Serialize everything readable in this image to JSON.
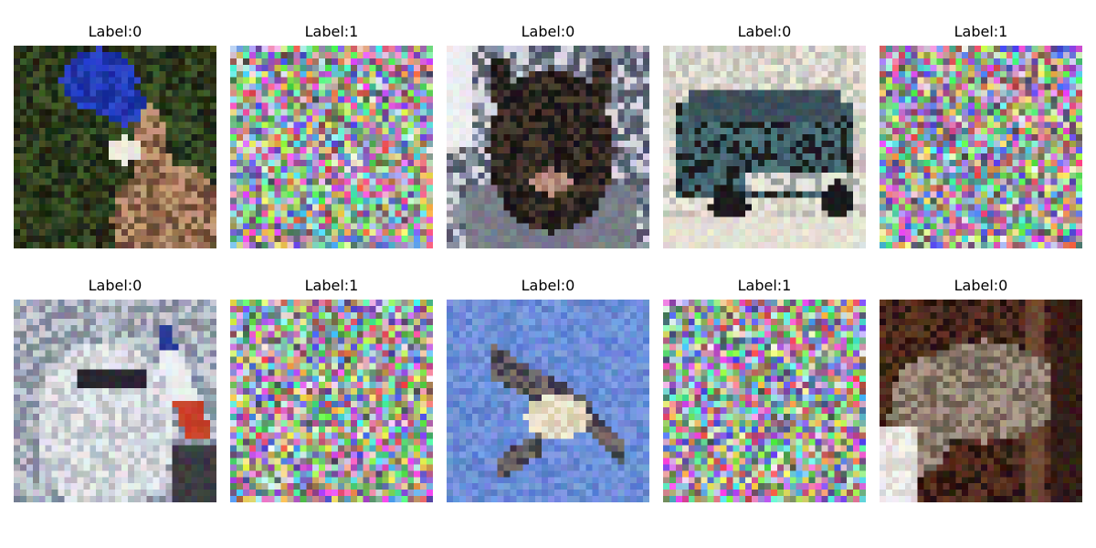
{
  "figure": {
    "panels": [
      {
        "label": "Label:0",
        "kind": "clean",
        "subject": "deer in forest",
        "palette": {
          "bg": [
            "#2c3a1c",
            "#405428",
            "#1c2414"
          ],
          "fg": [
            "#9a7052",
            "#c49a78",
            "#6a4a34"
          ],
          "accent": [
            "#1a2ea0",
            "#2a46c8"
          ]
        }
      },
      {
        "label": "Label:1",
        "kind": "noise"
      },
      {
        "label": "Label:0",
        "kind": "clean",
        "subject": "cat face",
        "palette": {
          "bg": [
            "#d8d8e0",
            "#8890a0",
            "#505868"
          ],
          "fg": [
            "#2a2420",
            "#4a3a30",
            "#1a1614"
          ],
          "accent": [
            "#a87c6c",
            "#c29888"
          ]
        }
      },
      {
        "label": "Label:0",
        "kind": "clean",
        "subject": "vintage truck",
        "palette": {
          "bg": [
            "#d4d2c8",
            "#c0beb4",
            "#eae6dc"
          ],
          "fg": [
            "#3c5c64",
            "#4c747c",
            "#1a1a1c"
          ],
          "accent": [
            "#e8e6dc",
            "#9aa0a0"
          ]
        }
      },
      {
        "label": "Label:1",
        "kind": "noise"
      },
      {
        "label": "Label:0",
        "kind": "clean",
        "subject": "airplane nose",
        "palette": {
          "bg": [
            "#a0a8b8",
            "#808898",
            "#c8ccd4"
          ],
          "fg": [
            "#e8eaee",
            "#d4d6dc",
            "#b8bcc4"
          ],
          "accent": [
            "#2a3a9a",
            "#c8402a"
          ]
        }
      },
      {
        "label": "Label:1",
        "kind": "noise"
      },
      {
        "label": "Label:0",
        "kind": "clean",
        "subject": "bird in sky",
        "palette": {
          "bg": [
            "#6a8ed8",
            "#7a9ae0",
            "#5c80cc"
          ],
          "fg": [
            "#5c5660",
            "#7a6e68",
            "#3a3844"
          ],
          "accent": [
            "#f0ead4",
            "#d8ccb0"
          ]
        }
      },
      {
        "label": "Label:1",
        "kind": "noise"
      },
      {
        "label": "Label:0",
        "kind": "clean",
        "subject": "horse in stable",
        "palette": {
          "bg": [
            "#4a2a1c",
            "#5e3624",
            "#2a1610"
          ],
          "fg": [
            "#8a7a6c",
            "#a89888",
            "#6a5c50"
          ],
          "accent": [
            "#f2f0ee",
            "#ddd8d4"
          ]
        }
      }
    ]
  }
}
